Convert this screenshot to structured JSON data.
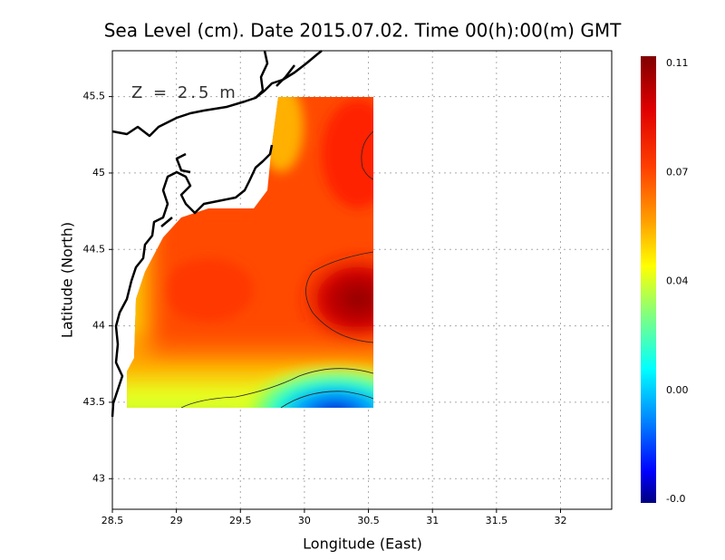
{
  "map": {
    "title": "Sea Level (cm). Date 2015.07.02. Time 00(h):00(m) GMT",
    "annotation": "Z = 2.5 m",
    "xlabel": "Longitude (East)",
    "ylabel": "Latitude (North)",
    "xlim": [
      28.5,
      32.4
    ],
    "ylim": [
      42.8,
      45.8
    ],
    "xticks": [
      28.5,
      29,
      29.5,
      30,
      30.5,
      31,
      31.5,
      32
    ],
    "yticks": [
      43,
      43.5,
      44,
      44.5,
      45,
      45.5
    ],
    "grid": true,
    "colorbar_labels": [
      "0.11",
      "0.07",
      "0.04",
      "0.00",
      "-0.0"
    ]
  }
}
